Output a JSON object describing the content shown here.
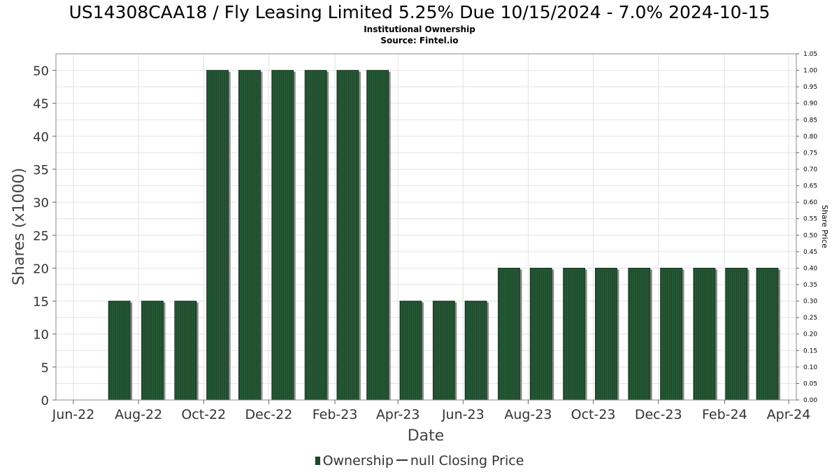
{
  "title": "US14308CAA18 / Fly Leasing Limited 5.25% Due 10/15/2024 - 7.0% 2024-10-15",
  "subtitle_line1": "Institutional Ownership",
  "subtitle_line2": "Source: Fintel.io",
  "legend": {
    "ownership": "Ownership",
    "price": "null Closing Price"
  },
  "colors": {
    "bar_fill": "#1e4a2c",
    "bar_stripe": "#2f6b40",
    "bar_shadow": "#8a8a8a",
    "grid": "#e2e2e2"
  },
  "chart_data": {
    "type": "bar",
    "xlabel": "Date",
    "ylabel": "Shares (x1000)",
    "ylabel_right": "Share Price",
    "ylim": [
      0,
      52.5
    ],
    "ylim_right": [
      0,
      1.05
    ],
    "y_ticks": [
      "0",
      "5",
      "10",
      "15",
      "20",
      "25",
      "30",
      "35",
      "40",
      "45",
      "50"
    ],
    "y_right_ticks": [
      "0.00",
      "0.05",
      "0.10",
      "0.15",
      "0.20",
      "0.25",
      "0.30",
      "0.35",
      "0.40",
      "0.45",
      "0.50",
      "0.55",
      "0.60",
      "0.65",
      "0.70",
      "0.75",
      "0.80",
      "0.85",
      "0.90",
      "0.95",
      "1.00",
      "1.05"
    ],
    "x_ticks": [
      "Jun-22",
      "Aug-22",
      "Oct-22",
      "Dec-22",
      "Feb-23",
      "Apr-23",
      "Jun-23",
      "Aug-23",
      "Oct-23",
      "Dec-23",
      "Feb-24",
      "Apr-24"
    ],
    "x_tick_dates": [
      "2022-06-01",
      "2022-08-01",
      "2022-10-01",
      "2022-12-01",
      "2023-02-01",
      "2023-04-01",
      "2023-06-01",
      "2023-08-01",
      "2023-10-01",
      "2023-12-01",
      "2024-02-01",
      "2024-04-01"
    ],
    "x_range": [
      "2022-06-01",
      "2024-04-01"
    ],
    "grid": true,
    "legend_position": "bottom",
    "series": [
      {
        "name": "Ownership",
        "dates": [
          "2022-07-14",
          "2022-08-14",
          "2022-09-14",
          "2022-10-14",
          "2022-11-13",
          "2022-12-14",
          "2023-01-14",
          "2023-02-13",
          "2023-03-13",
          "2023-04-13",
          "2023-05-14",
          "2023-06-13",
          "2023-07-14",
          "2023-08-13",
          "2023-09-13",
          "2023-10-13",
          "2023-11-13",
          "2023-12-13",
          "2024-01-13",
          "2024-02-12",
          "2024-03-12"
        ],
        "values": [
          15,
          15,
          15,
          50,
          50,
          50,
          50,
          50,
          50,
          15,
          15,
          15,
          20,
          20,
          20,
          20,
          20,
          20,
          20,
          20,
          20
        ]
      }
    ]
  }
}
